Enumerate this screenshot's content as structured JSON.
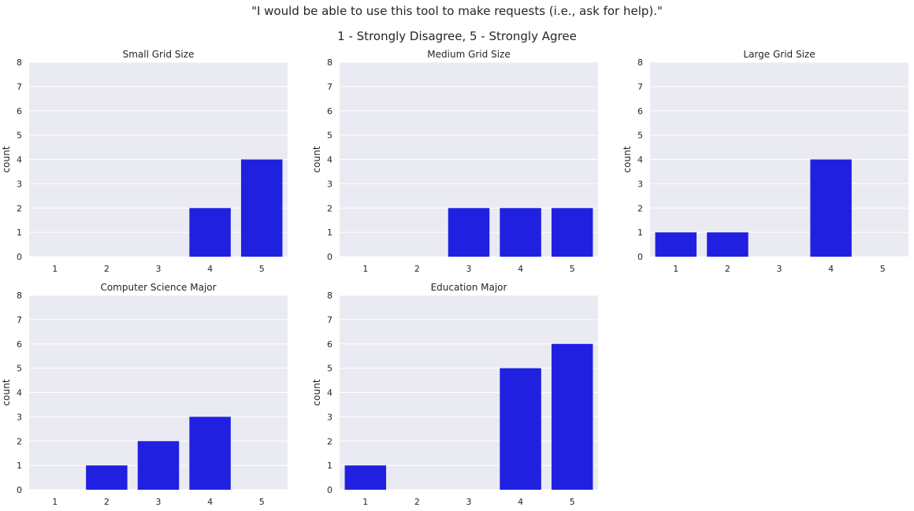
{
  "header": {
    "line1": "\"I would be able to use this tool to make requests (i.e., ask for help).\"",
    "line2": "1 - Strongly Disagree, 5 - Strongly Agree"
  },
  "colors": {
    "bar": "#2020e0",
    "plot_bg": "#eaeaf2",
    "grid": "#ffffff",
    "text": "#262626"
  },
  "chart_data": [
    {
      "type": "bar",
      "title": "Small Grid Size",
      "xlabel": "",
      "ylabel": "count",
      "categories": [
        "1",
        "2",
        "3",
        "4",
        "5"
      ],
      "values": [
        0,
        0,
        0,
        2,
        4
      ],
      "ylim": [
        0,
        8
      ],
      "yticks": [
        "0",
        "1",
        "2",
        "3",
        "4",
        "5",
        "6",
        "7",
        "8"
      ],
      "grid": true
    },
    {
      "type": "bar",
      "title": "Medium Grid Size",
      "xlabel": "",
      "ylabel": "count",
      "categories": [
        "1",
        "2",
        "3",
        "4",
        "5"
      ],
      "values": [
        0,
        0,
        2,
        2,
        2
      ],
      "ylim": [
        0,
        8
      ],
      "yticks": [
        "0",
        "1",
        "2",
        "3",
        "4",
        "5",
        "6",
        "7",
        "8"
      ],
      "grid": true
    },
    {
      "type": "bar",
      "title": "Large Grid Size",
      "xlabel": "",
      "ylabel": "count",
      "categories": [
        "1",
        "2",
        "3",
        "4",
        "5"
      ],
      "values": [
        1,
        1,
        0,
        4,
        0
      ],
      "ylim": [
        0,
        8
      ],
      "yticks": [
        "0",
        "1",
        "2",
        "3",
        "4",
        "5",
        "6",
        "7",
        "8"
      ],
      "grid": true
    },
    {
      "type": "bar",
      "title": "Computer Science Major",
      "xlabel": "",
      "ylabel": "count",
      "categories": [
        "1",
        "2",
        "3",
        "4",
        "5"
      ],
      "values": [
        0,
        1,
        2,
        3,
        0
      ],
      "ylim": [
        0,
        8
      ],
      "yticks": [
        "0",
        "1",
        "2",
        "3",
        "4",
        "5",
        "6",
        "7",
        "8"
      ],
      "grid": true
    },
    {
      "type": "bar",
      "title": "Education Major",
      "xlabel": "",
      "ylabel": "count",
      "categories": [
        "1",
        "2",
        "3",
        "4",
        "5"
      ],
      "values": [
        1,
        0,
        0,
        5,
        6
      ],
      "ylim": [
        0,
        8
      ],
      "yticks": [
        "0",
        "1",
        "2",
        "3",
        "4",
        "5",
        "6",
        "7",
        "8"
      ],
      "grid": true
    }
  ]
}
